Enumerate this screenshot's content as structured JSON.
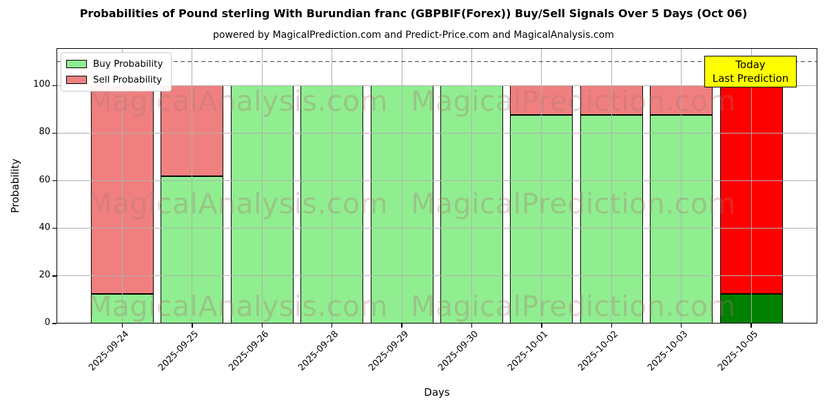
{
  "chart_data": {
    "type": "bar",
    "stacked": true,
    "title": "Probabilities of Pound sterling With Burundian franc (GBPBIF(Forex)) Buy/Sell Signals Over 5 Days (Oct 06)",
    "subtitle": "powered by MagicalPrediction.com and Predict-Price.com and MagicalAnalysis.com",
    "xlabel": "Days",
    "ylabel": "Probability",
    "ylim": [
      0,
      115.7
    ],
    "yticks": [
      0,
      20,
      40,
      60,
      80,
      100
    ],
    "grid": true,
    "grid_color": "#b0b0b0",
    "categories": [
      "2025-09-24",
      "2025-09-25",
      "2025-09-26",
      "2025-09-28",
      "2025-09-29",
      "2025-09-30",
      "2025-10-01",
      "2025-10-02",
      "2025-10-03",
      "2025-10-05"
    ],
    "series": [
      {
        "name": "Buy Probability",
        "color": "#90ee90",
        "values": [
          12.5,
          61.9,
          100,
          100,
          100,
          100,
          87.5,
          87.5,
          87.5,
          12.5
        ]
      },
      {
        "name": "Sell Probability",
        "color": "#f08080",
        "values": [
          87.5,
          38.1,
          0,
          0,
          0,
          0,
          12.5,
          12.5,
          12.5,
          87.5
        ]
      }
    ],
    "bar_edge_color": "#000000",
    "today_bar": {
      "index": 9,
      "buy_color": "#008000",
      "sell_color": "#ff0000"
    },
    "dashed_line_y": 110,
    "dashed_line_color": "#444444",
    "legend_position": "upper left",
    "annotation": {
      "lines": [
        "Today",
        "Last Prediction"
      ],
      "bg_color": "#ffff00",
      "border_color": "#000000"
    },
    "watermarks": {
      "left_text": "MagicalAnalysis.com",
      "right_text": "MagicalPrediction.com",
      "color": "rgba(170,115,115,0.32)"
    }
  }
}
